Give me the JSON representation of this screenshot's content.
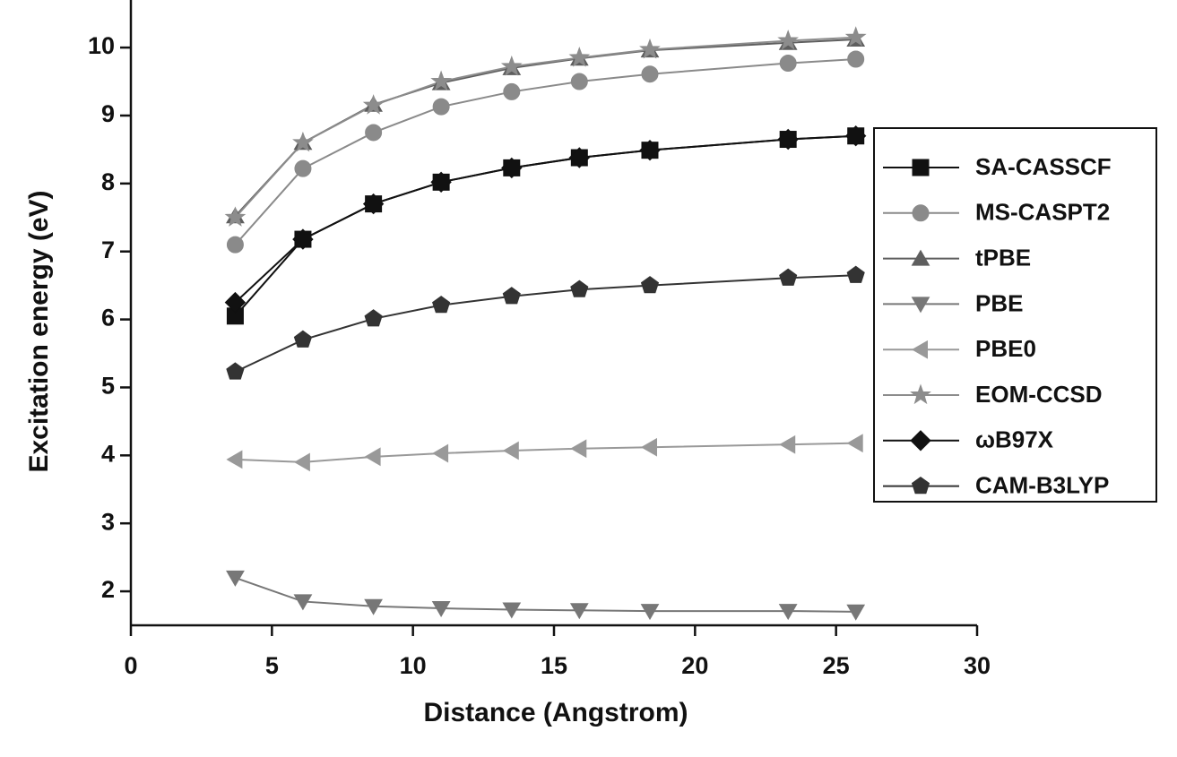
{
  "chart_data": {
    "type": "line",
    "x_label": "Distance (Angstrom)",
    "y_label": "Excitation energy (eV)",
    "x": [
      3.7,
      6.1,
      8.6,
      11.0,
      13.5,
      15.9,
      18.4,
      23.3,
      25.7
    ],
    "xlim": [
      0,
      30
    ],
    "xticks": [
      0,
      5,
      10,
      15,
      20,
      25,
      30
    ],
    "ylim": [
      1.5,
      10.7
    ],
    "yticks": [
      2,
      3,
      4,
      5,
      6,
      7,
      8,
      9,
      10
    ],
    "legend": "right",
    "series": [
      {
        "name": "SA-CASSCF",
        "color": "#111111",
        "marker": "square",
        "values": [
          6.05,
          7.18,
          7.7,
          8.02,
          8.23,
          8.38,
          8.49,
          8.65,
          8.7
        ]
      },
      {
        "name": "MS-CASPT2",
        "color": "#8a8a8a",
        "marker": "circle",
        "values": [
          7.1,
          8.22,
          8.75,
          9.13,
          9.35,
          9.5,
          9.61,
          9.77,
          9.83
        ]
      },
      {
        "name": "tPBE",
        "color": "#5e5e5e",
        "marker": "triangle-up",
        "values": [
          7.52,
          8.6,
          9.16,
          9.48,
          9.7,
          9.84,
          9.96,
          10.07,
          10.12
        ]
      },
      {
        "name": "PBE",
        "color": "#777777",
        "marker": "triangle-down",
        "values": [
          2.2,
          1.85,
          1.78,
          1.75,
          1.73,
          1.72,
          1.71,
          1.71,
          1.7
        ]
      },
      {
        "name": "PBE0",
        "color": "#999999",
        "marker": "triangle-left",
        "values": [
          3.94,
          3.9,
          3.98,
          4.03,
          4.07,
          4.1,
          4.12,
          4.16,
          4.18
        ]
      },
      {
        "name": "EOM-CCSD",
        "color": "#8c8c8c",
        "marker": "star",
        "values": [
          7.5,
          8.6,
          9.15,
          9.5,
          9.72,
          9.85,
          9.97,
          10.1,
          10.15
        ]
      },
      {
        "name": "ωB97X",
        "color": "#111111",
        "marker": "diamond",
        "values": [
          6.25,
          7.18,
          7.7,
          8.02,
          8.23,
          8.38,
          8.49,
          8.65,
          8.7
        ]
      },
      {
        "name": "CAM-B3LYP",
        "color": "#333333",
        "marker": "pentagon",
        "values": [
          5.23,
          5.7,
          6.01,
          6.21,
          6.34,
          6.44,
          6.5,
          6.61,
          6.65
        ]
      }
    ]
  }
}
